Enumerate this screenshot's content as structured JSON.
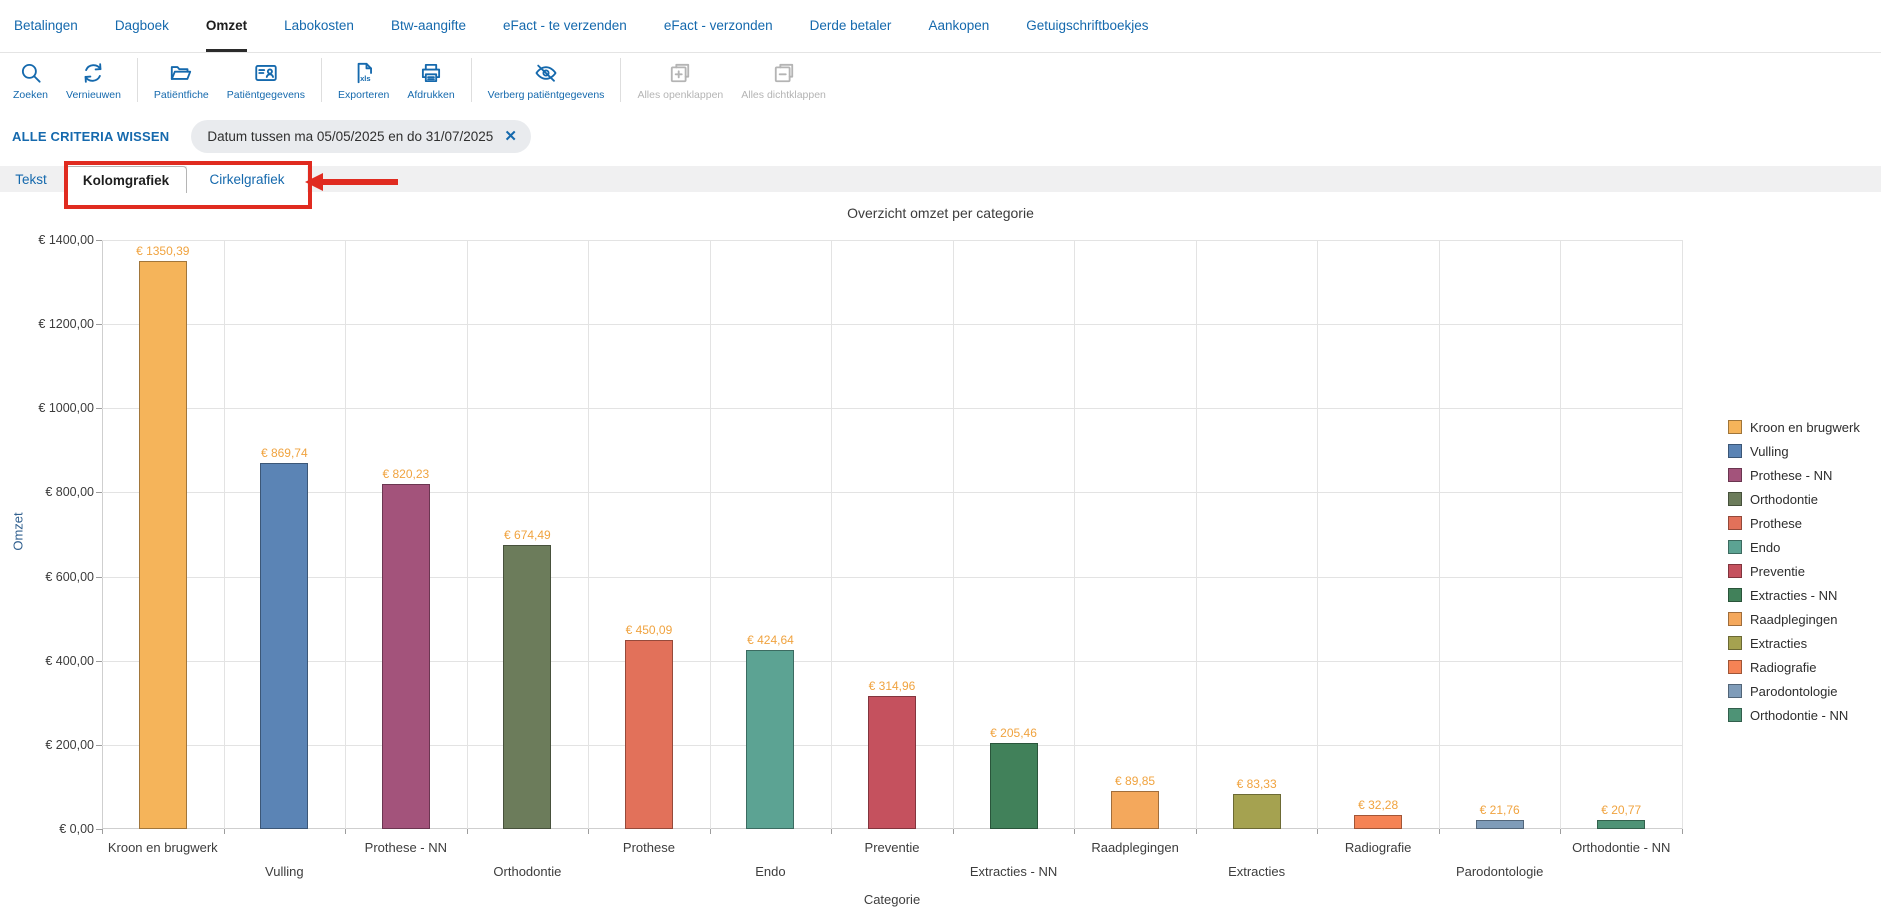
{
  "nav": {
    "items": [
      {
        "label": "Betalingen",
        "active": false
      },
      {
        "label": "Dagboek",
        "active": false
      },
      {
        "label": "Omzet",
        "active": true
      },
      {
        "label": "Labokosten",
        "active": false
      },
      {
        "label": "Btw-aangifte",
        "active": false
      },
      {
        "label": "eFact - te verzenden",
        "active": false
      },
      {
        "label": "eFact - verzonden",
        "active": false
      },
      {
        "label": "Derde betaler",
        "active": false
      },
      {
        "label": "Aankopen",
        "active": false
      },
      {
        "label": "Getuigschriftboekjes",
        "active": false
      }
    ]
  },
  "toolbar": {
    "groups": [
      {
        "buttons": [
          {
            "label": "Zoeken",
            "icon": "search-icon",
            "enabled": true
          },
          {
            "label": "Vernieuwen",
            "icon": "refresh-icon",
            "enabled": true
          }
        ]
      },
      {
        "buttons": [
          {
            "label": "Patiëntfiche",
            "icon": "folder-icon",
            "enabled": true
          },
          {
            "label": "Patiëntgegevens",
            "icon": "id-card-icon",
            "enabled": true
          }
        ]
      },
      {
        "buttons": [
          {
            "label": "Exporteren",
            "icon": "export-xls-icon",
            "enabled": true
          },
          {
            "label": "Afdrukken",
            "icon": "printer-icon",
            "enabled": true
          }
        ]
      },
      {
        "buttons": [
          {
            "label": "Verberg patiëntgegevens",
            "icon": "eye-off-icon",
            "enabled": true
          }
        ]
      },
      {
        "buttons": [
          {
            "label": "Alles openklappen",
            "icon": "expand-all-icon",
            "enabled": false
          },
          {
            "label": "Alles dichtklappen",
            "icon": "collapse-all-icon",
            "enabled": false
          }
        ]
      }
    ]
  },
  "filters": {
    "clear_all_label": "ALLE CRITERIA WISSEN",
    "chips": [
      {
        "label": "Datum tussen ma 05/05/2025 en do 31/07/2025",
        "close_icon": "close-icon"
      }
    ]
  },
  "view_tabs": [
    {
      "label": "Tekst",
      "active": false
    },
    {
      "label": "Kolomgrafiek",
      "active": true
    },
    {
      "label": "Cirkelgrafiek",
      "active": false
    }
  ],
  "colors": {
    "primary_blue": "#1569ad",
    "annotation_red": "#e02b20",
    "value_label_orange": "#f0a33f"
  },
  "chart_data": {
    "type": "bar",
    "title": "Overzicht omzet per categorie",
    "xlabel": "Categorie",
    "ylabel": "Omzet",
    "ylim": [
      0,
      1400
    ],
    "ytick_step": 200,
    "grid": true,
    "legend_position": "right",
    "categories": [
      "Kroon en brugwerk",
      "Vulling",
      "Prothese - NN",
      "Orthodontie",
      "Prothese",
      "Endo",
      "Preventie",
      "Extracties - NN",
      "Raadplegingen",
      "Extracties",
      "Radiografie",
      "Parodontologie",
      "Orthodontie - NN"
    ],
    "values": [
      1350.39,
      869.74,
      820.23,
      674.49,
      450.09,
      424.64,
      314.96,
      205.46,
      89.85,
      83.33,
      32.28,
      21.76,
      20.77
    ],
    "value_labels": [
      "€ 1350,39",
      "€ 869,74",
      "€ 820,23",
      "€ 674,49",
      "€ 450,09",
      "€ 424,64",
      "€ 314,96",
      "€ 205,46",
      "€ 89,85",
      "€ 83,33",
      "€ 32,28",
      "€ 21,76",
      "€ 20,77"
    ],
    "colors": [
      "#f5b45a",
      "#5b84b5",
      "#a3537b",
      "#6c7c5b",
      "#e2715a",
      "#5ca393",
      "#c5515e",
      "#41815a",
      "#f4a85c",
      "#a5a250",
      "#f58355",
      "#7f9cb9",
      "#4e9376"
    ],
    "ytick_labels": [
      "€ 0,00",
      "€ 200,00",
      "€ 400,00",
      "€ 600,00",
      "€ 800,00",
      "€ 1000,00",
      "€ 1200,00",
      "€ 1400,00"
    ]
  }
}
